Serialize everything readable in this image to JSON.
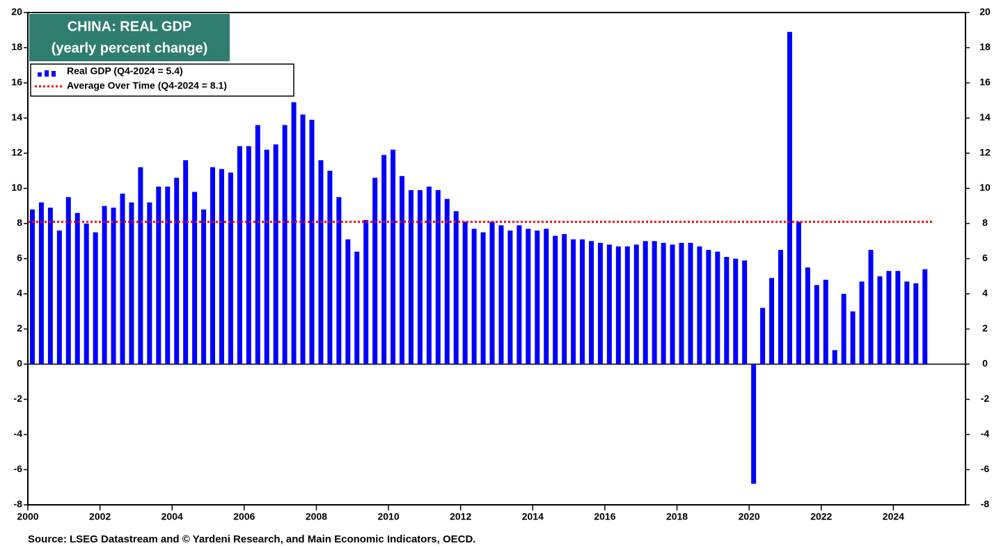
{
  "chart_data": {
    "type": "bar",
    "title": "CHINA: REAL GDP",
    "subtitle": "(yearly percent change)",
    "source": "Source: LSEG Datastream and © Yardeni Research, and Main Economic Indicators, OECD.",
    "x": [
      2000.125,
      2000.375,
      2000.625,
      2000.875,
      2001.125,
      2001.375,
      2001.625,
      2001.875,
      2002.125,
      2002.375,
      2002.625,
      2002.875,
      2003.125,
      2003.375,
      2003.625,
      2003.875,
      2004.125,
      2004.375,
      2004.625,
      2004.875,
      2005.125,
      2005.375,
      2005.625,
      2005.875,
      2006.125,
      2006.375,
      2006.625,
      2006.875,
      2007.125,
      2007.375,
      2007.625,
      2007.875,
      2008.125,
      2008.375,
      2008.625,
      2008.875,
      2009.125,
      2009.375,
      2009.625,
      2009.875,
      2010.125,
      2010.375,
      2010.625,
      2010.875,
      2011.125,
      2011.375,
      2011.625,
      2011.875,
      2012.125,
      2012.375,
      2012.625,
      2012.875,
      2013.125,
      2013.375,
      2013.625,
      2013.875,
      2014.125,
      2014.375,
      2014.625,
      2014.875,
      2015.125,
      2015.375,
      2015.625,
      2015.875,
      2016.125,
      2016.375,
      2016.625,
      2016.875,
      2017.125,
      2017.375,
      2017.625,
      2017.875,
      2018.125,
      2018.375,
      2018.625,
      2018.875,
      2019.125,
      2019.375,
      2019.625,
      2019.875,
      2020.125,
      2020.375,
      2020.625,
      2020.875,
      2021.125,
      2021.375,
      2021.625,
      2021.875,
      2022.125,
      2022.375,
      2022.625,
      2022.875,
      2023.125,
      2023.375,
      2023.625,
      2023.875,
      2024.125,
      2024.375,
      2024.625,
      2024.875
    ],
    "series": [
      {
        "name": "Real GDP (Q4-2024 = 5.4)",
        "color": "#0000ff",
        "values": [
          8.8,
          9.2,
          8.9,
          7.6,
          9.5,
          8.6,
          8.0,
          7.5,
          9.0,
          8.9,
          9.7,
          9.2,
          11.2,
          9.2,
          10.1,
          10.1,
          10.6,
          11.6,
          9.8,
          8.8,
          11.2,
          11.1,
          10.9,
          12.4,
          12.4,
          13.6,
          12.2,
          12.5,
          13.6,
          14.9,
          14.2,
          13.9,
          11.6,
          11.0,
          9.5,
          7.1,
          6.4,
          8.2,
          10.6,
          11.9,
          12.2,
          10.7,
          9.9,
          9.9,
          10.1,
          9.9,
          9.4,
          8.7,
          8.1,
          7.7,
          7.5,
          8.1,
          7.9,
          7.6,
          7.9,
          7.7,
          7.6,
          7.7,
          7.3,
          7.4,
          7.1,
          7.1,
          7.0,
          6.9,
          6.8,
          6.7,
          6.7,
          6.8,
          7.0,
          7.0,
          6.9,
          6.8,
          6.9,
          6.9,
          6.7,
          6.5,
          6.4,
          6.1,
          6.0,
          5.9,
          -6.8,
          3.2,
          4.9,
          6.5,
          18.9,
          8.1,
          5.5,
          4.5,
          4.8,
          0.8,
          4.0,
          3.0,
          4.7,
          6.5,
          5.0,
          5.3,
          5.3,
          4.7,
          4.6,
          5.4
        ]
      }
    ],
    "average": {
      "name": "Average Over Time (Q4-2024 = 8.1)",
      "color": "#ff0000",
      "value": 8.1
    },
    "xlim": [
      2000,
      2026
    ],
    "xticks": [
      2000,
      2002,
      2004,
      2006,
      2008,
      2010,
      2012,
      2014,
      2016,
      2018,
      2020,
      2022,
      2024
    ],
    "ylim": [
      -8,
      20
    ],
    "yticks": [
      -8,
      -6,
      -4,
      -2,
      0,
      2,
      4,
      6,
      8,
      10,
      12,
      14,
      16,
      18,
      20
    ],
    "y2lim": [
      -8,
      20
    ],
    "y2ticks": [
      -8,
      -6,
      -4,
      -2,
      0,
      2,
      4,
      6,
      8,
      10,
      12,
      14,
      16,
      18,
      20
    ]
  }
}
